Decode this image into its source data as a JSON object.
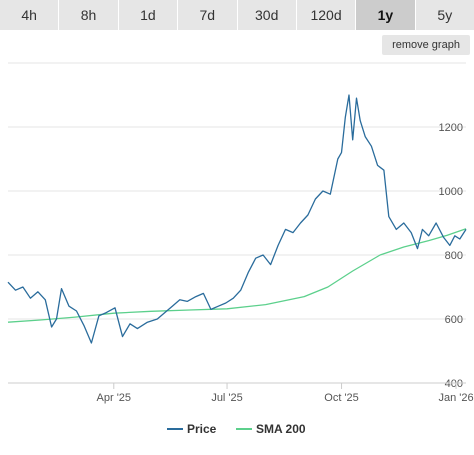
{
  "tabs": [
    {
      "label": "4h"
    },
    {
      "label": "8h"
    },
    {
      "label": "1d"
    },
    {
      "label": "7d"
    },
    {
      "label": "30d"
    },
    {
      "label": "120d"
    },
    {
      "label": "1y",
      "active": true
    },
    {
      "label": "5y"
    }
  ],
  "remove_graph_label": "remove graph",
  "colors": {
    "price": "#2a6c9c",
    "sma": "#5cd08c",
    "grid": "#e6e6e6"
  },
  "chart_data": {
    "type": "line",
    "ylim": [
      400,
      1400
    ],
    "yticks": [
      400,
      600,
      800,
      1000,
      1200
    ],
    "xticks": [
      {
        "label": "Apr '25",
        "date": "2025-04-01"
      },
      {
        "label": "Jul '25",
        "date": "2025-07-01"
      },
      {
        "label": "Oct '25",
        "date": "2025-10-01"
      },
      {
        "label": "Jan '26",
        "date": "2026-01-01"
      }
    ],
    "xrange": [
      "2025-01-06",
      "2026-01-09"
    ],
    "series": [
      {
        "name": "Price",
        "points": [
          [
            "2025-01-06",
            715
          ],
          [
            "2025-01-12",
            690
          ],
          [
            "2025-01-18",
            700
          ],
          [
            "2025-01-24",
            665
          ],
          [
            "2025-01-30",
            685
          ],
          [
            "2025-02-05",
            660
          ],
          [
            "2025-02-10",
            575
          ],
          [
            "2025-02-14",
            600
          ],
          [
            "2025-02-18",
            695
          ],
          [
            "2025-02-24",
            640
          ],
          [
            "2025-03-02",
            625
          ],
          [
            "2025-03-08",
            580
          ],
          [
            "2025-03-14",
            525
          ],
          [
            "2025-03-20",
            610
          ],
          [
            "2025-03-26",
            620
          ],
          [
            "2025-04-02",
            635
          ],
          [
            "2025-04-08",
            545
          ],
          [
            "2025-04-14",
            585
          ],
          [
            "2025-04-20",
            570
          ],
          [
            "2025-04-28",
            590
          ],
          [
            "2025-05-06",
            600
          ],
          [
            "2025-05-12",
            620
          ],
          [
            "2025-05-18",
            640
          ],
          [
            "2025-05-24",
            660
          ],
          [
            "2025-05-30",
            655
          ],
          [
            "2025-06-06",
            670
          ],
          [
            "2025-06-12",
            680
          ],
          [
            "2025-06-18",
            630
          ],
          [
            "2025-06-24",
            640
          ],
          [
            "2025-06-30",
            650
          ],
          [
            "2025-07-06",
            665
          ],
          [
            "2025-07-12",
            690
          ],
          [
            "2025-07-18",
            745
          ],
          [
            "2025-07-24",
            790
          ],
          [
            "2025-07-30",
            800
          ],
          [
            "2025-08-05",
            770
          ],
          [
            "2025-08-11",
            830
          ],
          [
            "2025-08-17",
            880
          ],
          [
            "2025-08-23",
            870
          ],
          [
            "2025-08-29",
            900
          ],
          [
            "2025-09-04",
            925
          ],
          [
            "2025-09-10",
            975
          ],
          [
            "2025-09-16",
            1000
          ],
          [
            "2025-09-22",
            990
          ],
          [
            "2025-09-28",
            1100
          ],
          [
            "2025-10-01",
            1120
          ],
          [
            "2025-10-04",
            1230
          ],
          [
            "2025-10-07",
            1300
          ],
          [
            "2025-10-10",
            1160
          ],
          [
            "2025-10-13",
            1290
          ],
          [
            "2025-10-16",
            1220
          ],
          [
            "2025-10-20",
            1170
          ],
          [
            "2025-10-25",
            1140
          ],
          [
            "2025-10-30",
            1080
          ],
          [
            "2025-11-04",
            1065
          ],
          [
            "2025-11-08",
            920
          ],
          [
            "2025-11-14",
            880
          ],
          [
            "2025-11-20",
            900
          ],
          [
            "2025-11-26",
            870
          ],
          [
            "2025-12-01",
            820
          ],
          [
            "2025-12-05",
            880
          ],
          [
            "2025-12-10",
            860
          ],
          [
            "2025-12-16",
            900
          ],
          [
            "2025-12-22",
            855
          ],
          [
            "2025-12-27",
            830
          ],
          [
            "2025-12-31",
            860
          ],
          [
            "2026-01-04",
            850
          ],
          [
            "2026-01-09",
            880
          ]
        ]
      },
      {
        "name": "SMA 200",
        "points": [
          [
            "2025-01-06",
            590
          ],
          [
            "2025-02-01",
            597
          ],
          [
            "2025-03-01",
            606
          ],
          [
            "2025-04-01",
            618
          ],
          [
            "2025-05-01",
            624
          ],
          [
            "2025-06-01",
            628
          ],
          [
            "2025-07-01",
            632
          ],
          [
            "2025-08-01",
            645
          ],
          [
            "2025-09-01",
            670
          ],
          [
            "2025-09-20",
            700
          ],
          [
            "2025-10-10",
            750
          ],
          [
            "2025-11-01",
            800
          ],
          [
            "2025-11-20",
            825
          ],
          [
            "2025-12-10",
            845
          ],
          [
            "2025-12-25",
            862
          ],
          [
            "2026-01-09",
            882
          ]
        ]
      }
    ]
  }
}
